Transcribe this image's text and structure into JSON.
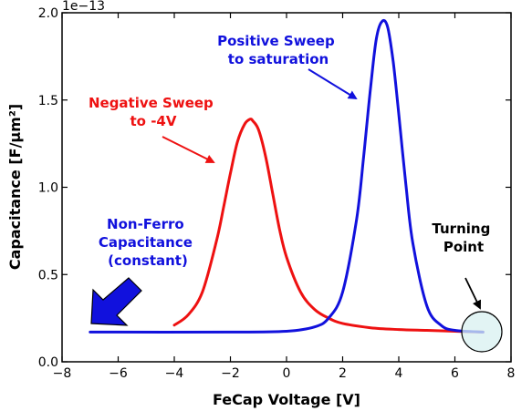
{
  "chart_data": {
    "type": "line",
    "xlabel": "FeCap Voltage [V]",
    "ylabel": "Capacitance [F/µm²]",
    "offset_text": "1e−13",
    "xlim": [
      -8,
      8
    ],
    "ylim": [
      0.0,
      2.0
    ],
    "grid": false,
    "xticks": [
      -8,
      -6,
      -4,
      -2,
      0,
      2,
      4,
      6,
      8
    ],
    "xtick_labels": [
      "−8",
      "−6",
      "−4",
      "−2",
      "0",
      "2",
      "4",
      "6",
      "8"
    ],
    "yticks": [
      0.0,
      0.5,
      1.0,
      1.5,
      2.0
    ],
    "ytick_labels": [
      "0.0",
      "0.5",
      "1.0",
      "1.5",
      "2.0"
    ],
    "series": [
      {
        "color": "#ee1111",
        "x": [
          -4.0,
          -3.5,
          -3.0,
          -2.5,
          -2.25,
          -2.0,
          -1.75,
          -1.5,
          -1.3,
          -1.2,
          -1.0,
          -0.75,
          -0.5,
          -0.25,
          0.0,
          0.5,
          1.0,
          1.5,
          2.0,
          3.0,
          4.0,
          5.0,
          6.0,
          7.0
        ],
        "y": [
          0.21,
          0.27,
          0.4,
          0.69,
          0.88,
          1.08,
          1.26,
          1.36,
          1.39,
          1.38,
          1.33,
          1.18,
          0.97,
          0.76,
          0.6,
          0.4,
          0.3,
          0.25,
          0.22,
          0.195,
          0.185,
          0.18,
          0.175,
          0.17
        ]
      },
      {
        "color": "#1111dd",
        "x": [
          -7.0,
          -2.0,
          0.0,
          1.0,
          1.5,
          2.0,
          2.5,
          2.75,
          3.0,
          3.2,
          3.4,
          3.6,
          3.8,
          4.0,
          4.25,
          4.5,
          5.0,
          5.5,
          6.0,
          7.0
        ],
        "y": [
          0.17,
          0.17,
          0.175,
          0.2,
          0.25,
          0.4,
          0.82,
          1.18,
          1.58,
          1.85,
          1.95,
          1.92,
          1.72,
          1.42,
          1.02,
          0.68,
          0.32,
          0.21,
          0.18,
          0.17
        ]
      }
    ],
    "annotations": [
      {
        "lines": [
          "Positive Sweep",
          "to saturation"
        ],
        "color": "#1111dd"
      },
      {
        "lines": [
          "Negative Sweep",
          "to -4V"
        ],
        "color": "#ee1111"
      },
      {
        "lines": [
          "Non-Ferro",
          "Capacitance",
          "(constant)"
        ],
        "color": "#1111dd"
      },
      {
        "lines": [
          "Turning",
          "Point"
        ],
        "color": "#000000"
      }
    ]
  }
}
